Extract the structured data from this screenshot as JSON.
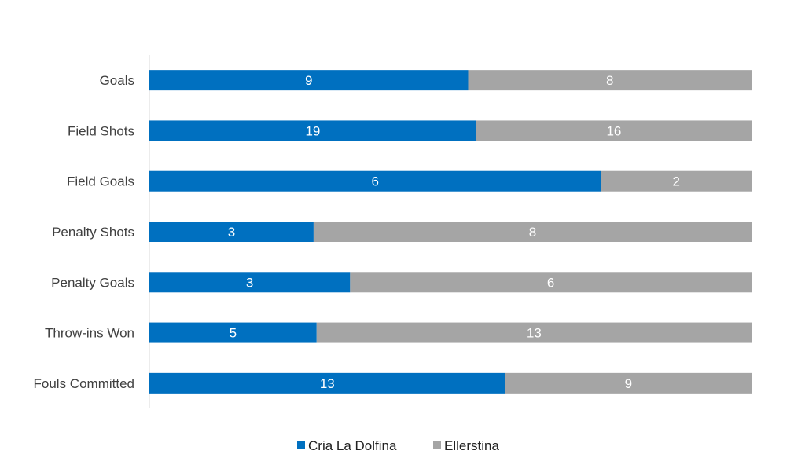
{
  "chart_data": {
    "type": "bar",
    "orientation": "horizontal",
    "stacking": "percent",
    "title": "",
    "xlabel": "",
    "ylabel": "",
    "categories": [
      "Goals",
      "Field Shots",
      "Field Goals",
      "Penalty Shots",
      "Penalty Goals",
      "Throw-ins Won",
      "Fouls Committed"
    ],
    "series": [
      {
        "name": "Cria La Dolfina",
        "color": "#0070C0",
        "values": [
          9,
          19,
          6,
          3,
          3,
          5,
          13
        ]
      },
      {
        "name": "Ellerstina",
        "color": "#A5A5A5",
        "values": [
          8,
          16,
          2,
          8,
          6,
          13,
          9
        ]
      }
    ],
    "data_labels": true,
    "grid": false,
    "legend": "bottom"
  }
}
